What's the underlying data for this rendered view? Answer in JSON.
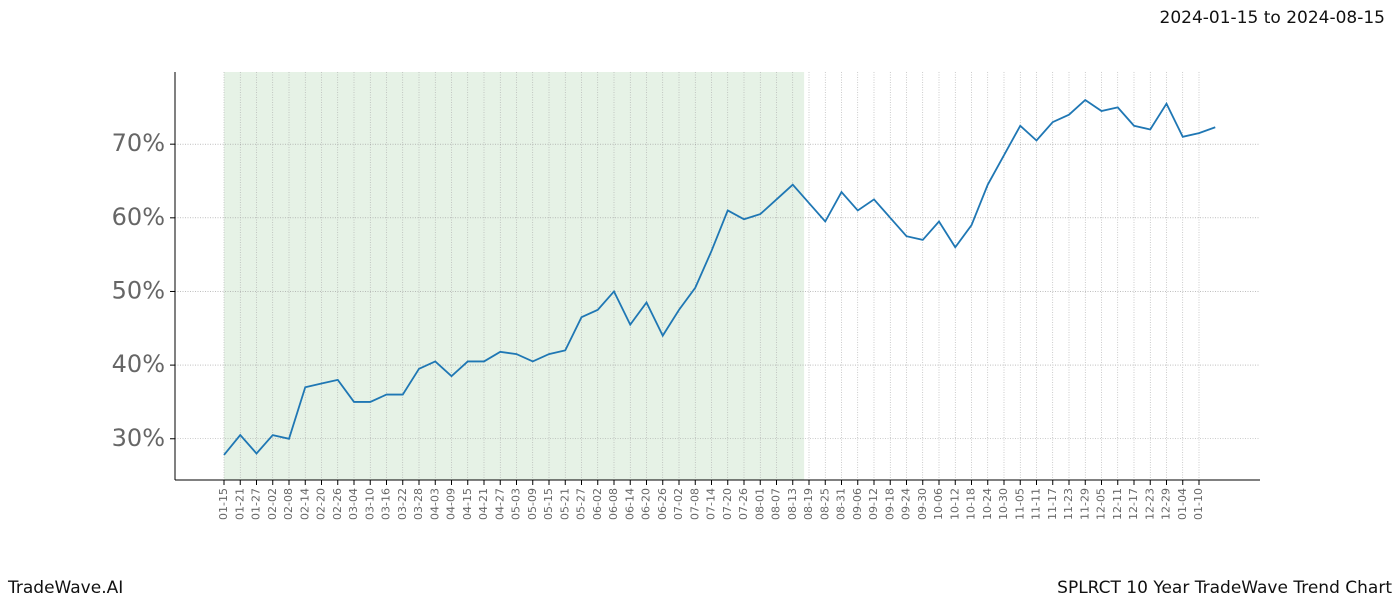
{
  "chart_data": {
    "type": "line",
    "title": "SPLRCT 10 Year TradeWave Trend Chart",
    "subtitle": "2024-01-15 to 2024-08-15",
    "source": "TradeWave.AI",
    "categories": [
      "01-15",
      "01-21",
      "01-27",
      "02-02",
      "02-08",
      "02-14",
      "02-20",
      "02-26",
      "03-04",
      "03-10",
      "03-16",
      "03-22",
      "03-28",
      "04-03",
      "04-09",
      "04-15",
      "04-21",
      "04-27",
      "05-03",
      "05-09",
      "05-15",
      "05-21",
      "05-27",
      "06-02",
      "06-08",
      "06-14",
      "06-20",
      "06-26",
      "07-02",
      "07-08",
      "07-14",
      "07-20",
      "07-26",
      "08-01",
      "08-07",
      "08-13",
      "08-19",
      "08-25",
      "08-31",
      "09-06",
      "09-12",
      "09-18",
      "09-24",
      "09-30",
      "10-06",
      "10-12",
      "10-18",
      "10-24",
      "10-30",
      "11-05",
      "11-11",
      "11-17",
      "11-23",
      "11-29",
      "12-05",
      "12-11",
      "12-17",
      "12-23",
      "12-29",
      "01-04",
      "01-10",
      null
    ],
    "series": [
      {
        "name": "SPLRCT",
        "color": "#1f77b4",
        "values": [
          27.8,
          30.5,
          28,
          30.5,
          30,
          37,
          37.5,
          38,
          35,
          35,
          36,
          36,
          39.5,
          40.5,
          38.5,
          40.5,
          40.5,
          41.8,
          41.5,
          40.5,
          41.5,
          42,
          46.5,
          47.5,
          50,
          45.5,
          48.5,
          44,
          47.5,
          50.5,
          55.5,
          61,
          59.8,
          60.5,
          62.5,
          64.5,
          62,
          59.5,
          63.5,
          61,
          62.5,
          60,
          57.5,
          57,
          59.5,
          56,
          59,
          64.5,
          68.5,
          72.5,
          70.5,
          73,
          74,
          76,
          74.5,
          75,
          72.5,
          72,
          75.5,
          71,
          71.5,
          72.3
        ]
      }
    ],
    "ylim": [
      24.4,
      79.8
    ],
    "yticks": [
      {
        "value": 30,
        "label": "30%"
      },
      {
        "value": 40,
        "label": "40%"
      },
      {
        "value": 50,
        "label": "50%"
      },
      {
        "value": 60,
        "label": "60%"
      },
      {
        "value": 70,
        "label": "70%"
      }
    ],
    "grid": true,
    "highlight_color": "#e6f2e6"
  }
}
